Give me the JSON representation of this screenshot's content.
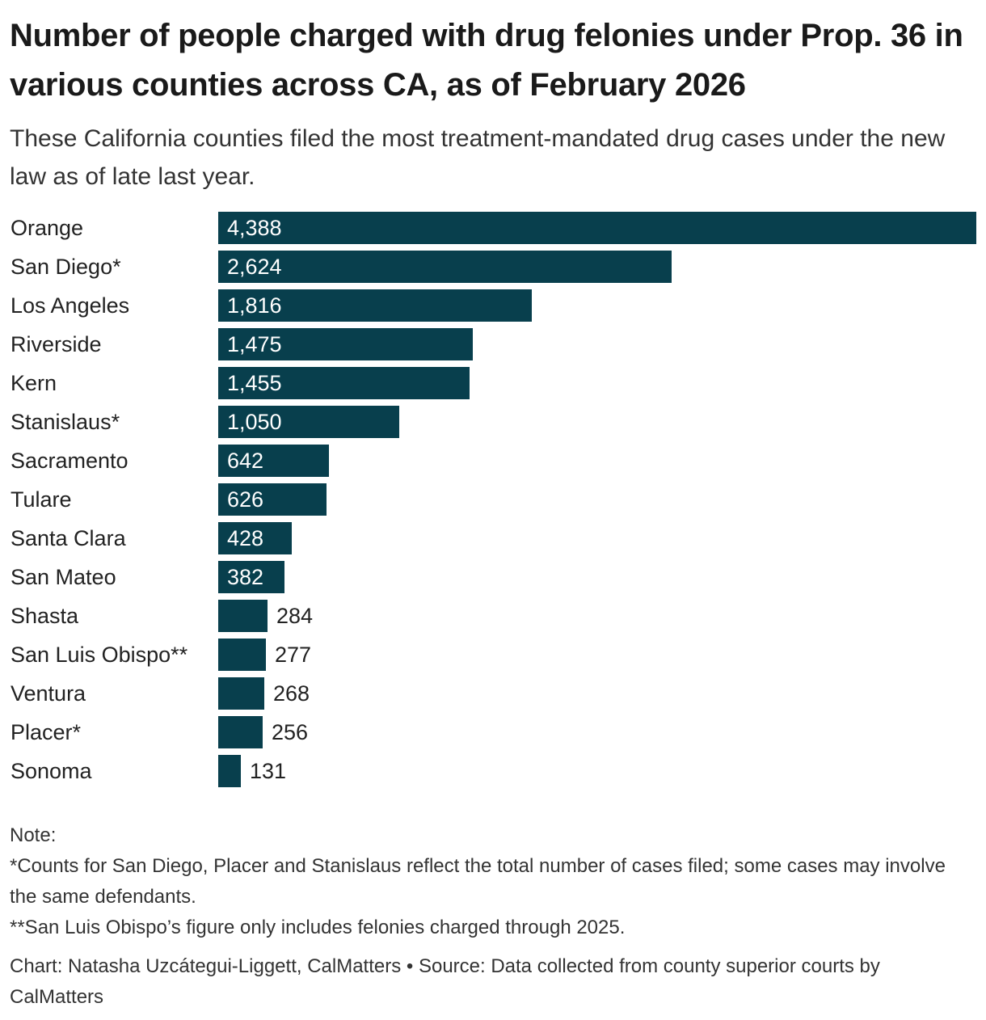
{
  "chart_data": {
    "type": "bar",
    "orientation": "horizontal",
    "title": "Number of people charged with drug felonies under Prop. 36 in various counties across CA, as of February 2026",
    "subtitle": "These California counties filed the most treatment-mandated drug cases under the new law as of late last year.",
    "categories": [
      "Orange",
      "San Diego*",
      "Los Angeles",
      "Riverside",
      "Kern",
      "Stanislaus*",
      "Sacramento",
      "Tulare",
      "Santa Clara",
      "San Mateo",
      "Shasta",
      "San Luis Obispo**",
      "Ventura",
      "Placer*",
      "Sonoma"
    ],
    "values": [
      4388,
      2624,
      1816,
      1475,
      1455,
      1050,
      642,
      626,
      428,
      382,
      284,
      277,
      268,
      256,
      131
    ],
    "value_labels": [
      "4,388",
      "2,624",
      "1,816",
      "1,475",
      "1,455",
      "1,050",
      "642",
      "626",
      "428",
      "382",
      "284",
      "277",
      "268",
      "256",
      "131"
    ],
    "xlim": [
      0,
      4388
    ],
    "bar_color": "#083f4d",
    "inside_label_color": "#ffffff",
    "outside_label_color": "#222222",
    "grid": false,
    "legend": "none"
  },
  "notes": {
    "heading": "Note:",
    "lines": [
      "*Counts for San Diego, Placer and Stanislaus reflect the total number of cases filed; some cases may involve the same defendants.",
      "**San Luis Obispo’s figure only includes felonies charged through 2025."
    ]
  },
  "credit": "Chart: Natasha Uzcátegui-Liggett, CalMatters • Source: Data collected from county superior courts by CalMatters"
}
